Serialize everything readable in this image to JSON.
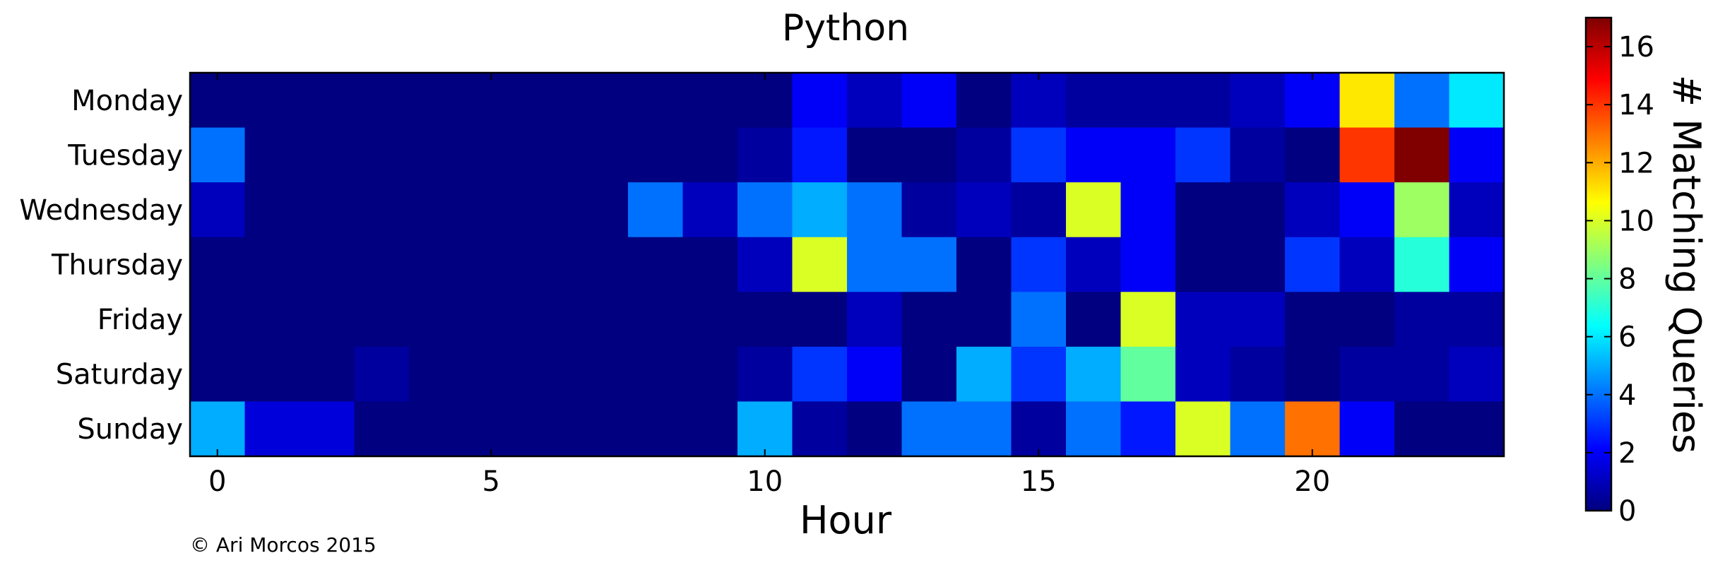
{
  "chart_data": {
    "type": "heatmap",
    "title": "Python",
    "xlabel": "Hour",
    "colorbar_label": "# Matching Queries",
    "colormap": "jet",
    "vmin": 0,
    "vmax": 17,
    "x": [
      0,
      1,
      2,
      3,
      4,
      5,
      6,
      7,
      8,
      9,
      10,
      11,
      12,
      13,
      14,
      15,
      16,
      17,
      18,
      19,
      20,
      21,
      22,
      23
    ],
    "x_ticks": [
      0,
      5,
      10,
      15,
      20
    ],
    "colorbar_ticks": [
      0,
      2,
      4,
      6,
      8,
      10,
      12,
      14,
      16
    ],
    "rows": [
      "Monday",
      "Tuesday",
      "Wednesday",
      "Thursday",
      "Friday",
      "Saturday",
      "Sunday"
    ],
    "values": [
      [
        0,
        0,
        0,
        0,
        0,
        0,
        0,
        0,
        0,
        0,
        0,
        2,
        1,
        2,
        0,
        1,
        0.5,
        0.5,
        0.5,
        1,
        2,
        11,
        4,
        6
      ],
      [
        4,
        0,
        0,
        0,
        0,
        0,
        0,
        0,
        0,
        0,
        0.5,
        2.5,
        0,
        0,
        0.5,
        3,
        2,
        2,
        3,
        0.5,
        0,
        14,
        17,
        2
      ],
      [
        1,
        0,
        0,
        0,
        0,
        0,
        0,
        0,
        4,
        1,
        4,
        5,
        4,
        0.5,
        1,
        0.5,
        10,
        2,
        0,
        0,
        1,
        2,
        9,
        1
      ],
      [
        0,
        0,
        0,
        0,
        0,
        0,
        0,
        0,
        0,
        0,
        1,
        10,
        4,
        4,
        0,
        3,
        1,
        2,
        0,
        0,
        3,
        1,
        7,
        2
      ],
      [
        0,
        0,
        0,
        0,
        0,
        0,
        0,
        0,
        0,
        0,
        0,
        0,
        1,
        0,
        0,
        4,
        0,
        10,
        1,
        1,
        0,
        0,
        0.5,
        0.5
      ],
      [
        0,
        0,
        0,
        0.5,
        0,
        0,
        0,
        0,
        0,
        0,
        0.5,
        3,
        2,
        0,
        5,
        3,
        5,
        8,
        1,
        0.5,
        0,
        0.5,
        0.5,
        1
      ],
      [
        5,
        1.5,
        1.5,
        0,
        0,
        0,
        0,
        0,
        0,
        0,
        5,
        0.5,
        0,
        4,
        4,
        0.5,
        4,
        2.5,
        10,
        4,
        13,
        2,
        0,
        0
      ]
    ]
  },
  "copyright": "© Ari Morcos  2015"
}
